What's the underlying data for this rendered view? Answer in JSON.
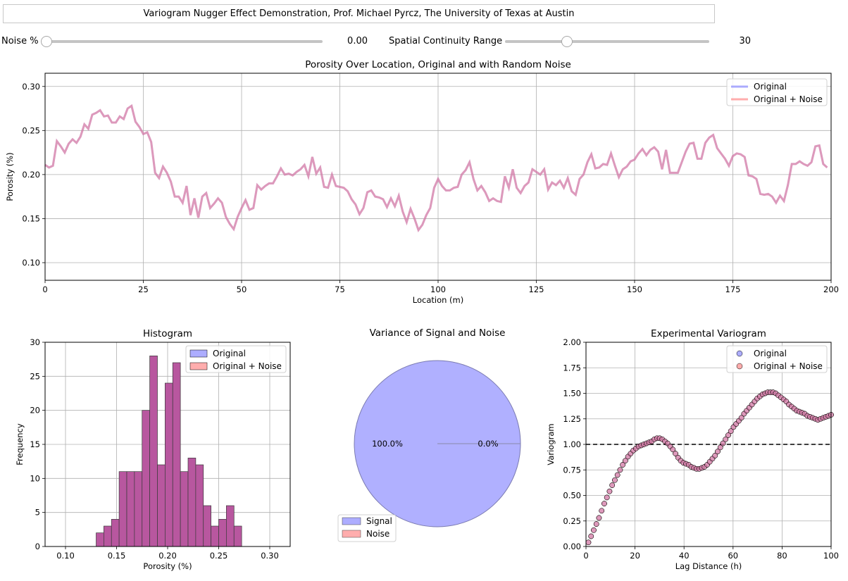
{
  "header": {
    "title": "Variogram Nugger Effect Demonstration, Prof. Michael Pyrcz, The University of Texas at Austin"
  },
  "controls": {
    "noise": {
      "label": "Noise %",
      "value_text": "0.00",
      "value": 0.0,
      "min": 0,
      "max": 100
    },
    "range": {
      "label": "Spatial Continuity Range",
      "value_text": "30",
      "value": 30,
      "min": 0,
      "max": 100
    }
  },
  "colors": {
    "original": "#7777ff",
    "noise": "#ff7777",
    "combined": "#b868a8",
    "hist_fill": "#b8579f",
    "signal_pie": "#b0b0ff"
  },
  "chart_data": [
    {
      "id": "line",
      "type": "line",
      "title": "Porosity Over Location, Original and with Random Noise",
      "xlabel": "Location (m)",
      "ylabel": "Porosity (%)",
      "xlim": [
        0,
        200
      ],
      "ylim": [
        0.08,
        0.315
      ],
      "xticks": [
        0,
        25,
        50,
        75,
        100,
        125,
        150,
        175,
        200
      ],
      "yticks": [
        0.1,
        0.15,
        0.2,
        0.25,
        0.3
      ],
      "legend": {
        "placement": "top-right",
        "entries": [
          "Original",
          "Original + Noise"
        ]
      },
      "series": [
        {
          "name": "Original",
          "values": [
            0.211,
            0.208,
            0.21,
            0.238,
            0.232,
            0.225,
            0.235,
            0.24,
            0.236,
            0.243,
            0.257,
            0.252,
            0.268,
            0.27,
            0.273,
            0.266,
            0.267,
            0.259,
            0.259,
            0.266,
            0.263,
            0.275,
            0.278,
            0.26,
            0.254,
            0.246,
            0.248,
            0.237,
            0.202,
            0.196,
            0.209,
            0.202,
            0.192,
            0.175,
            0.175,
            0.168,
            0.187,
            0.154,
            0.173,
            0.151,
            0.175,
            0.179,
            0.162,
            0.167,
            0.173,
            0.168,
            0.152,
            0.144,
            0.138,
            0.152,
            0.162,
            0.171,
            0.16,
            0.162,
            0.188,
            0.183,
            0.187,
            0.19,
            0.19,
            0.198,
            0.207,
            0.2,
            0.201,
            0.199,
            0.203,
            0.206,
            0.211,
            0.198,
            0.22,
            0.201,
            0.208,
            0.186,
            0.185,
            0.2,
            0.187,
            0.186,
            0.185,
            0.181,
            0.172,
            0.166,
            0.155,
            0.162,
            0.18,
            0.182,
            0.175,
            0.174,
            0.172,
            0.163,
            0.173,
            0.164,
            0.176,
            0.158,
            0.146,
            0.161,
            0.15,
            0.137,
            0.143,
            0.154,
            0.162,
            0.185,
            0.195,
            0.187,
            0.182,
            0.182,
            0.185,
            0.186,
            0.2,
            0.205,
            0.214,
            0.195,
            0.182,
            0.187,
            0.18,
            0.17,
            0.173,
            0.17,
            0.169,
            0.198,
            0.185,
            0.206,
            0.185,
            0.179,
            0.187,
            0.191,
            0.206,
            0.203,
            0.2,
            0.206,
            0.183,
            0.191,
            0.188,
            0.193,
            0.185,
            0.196,
            0.181,
            0.177,
            0.195,
            0.2,
            0.214,
            0.223,
            0.207,
            0.208,
            0.212,
            0.211,
            0.224,
            0.21,
            0.197,
            0.206,
            0.209,
            0.215,
            0.217,
            0.224,
            0.229,
            0.222,
            0.228,
            0.231,
            0.226,
            0.206,
            0.228,
            0.202,
            0.202,
            0.202,
            0.214,
            0.226,
            0.235,
            0.236,
            0.218,
            0.218,
            0.236,
            0.242,
            0.245,
            0.23,
            0.224,
            0.218,
            0.21,
            0.221,
            0.224,
            0.223,
            0.22,
            0.199,
            0.198,
            0.195,
            0.178,
            0.177,
            0.178,
            0.175,
            0.168,
            0.176,
            0.17,
            0.188,
            0.212,
            0.212,
            0.215,
            0.212,
            0.21,
            0.214,
            0.232,
            0.233,
            0.212,
            0.208
          ]
        },
        {
          "name": "Original + Noise",
          "values": "identical to Original (noise = 0.00)"
        }
      ]
    },
    {
      "id": "hist",
      "type": "bar",
      "title": "Histogram",
      "xlabel": "Porosity (%)",
      "ylabel": "Frequency",
      "xlim": [
        0.08,
        0.32
      ],
      "ylim": [
        0,
        30
      ],
      "xticks": [
        0.1,
        0.15,
        0.2,
        0.25,
        0.3
      ],
      "yticks": [
        0,
        5,
        10,
        15,
        20,
        25,
        30
      ],
      "legend": {
        "placement": "top-right",
        "entries": [
          "Original",
          "Original + Noise"
        ]
      },
      "bin_edges": [
        0.13,
        0.1375,
        0.145,
        0.1525,
        0.16,
        0.1675,
        0.175,
        0.1825,
        0.19,
        0.1975,
        0.205,
        0.2125,
        0.22,
        0.2275,
        0.235,
        0.2425,
        0.25,
        0.2575,
        0.265,
        0.2725,
        0.28
      ],
      "series": [
        {
          "name": "Original",
          "values": [
            2,
            3,
            4,
            11,
            11,
            11,
            20,
            28,
            12,
            24,
            27,
            11,
            13,
            12,
            6,
            3,
            4,
            6,
            3,
            0
          ]
        },
        {
          "name": "Original + Noise",
          "values": [
            2,
            3,
            4,
            11,
            11,
            11,
            20,
            28,
            12,
            24,
            27,
            11,
            13,
            12,
            6,
            3,
            4,
            6,
            3,
            0
          ]
        }
      ]
    },
    {
      "id": "pie",
      "type": "pie",
      "title": "Variance of Signal and Noise",
      "legend": {
        "placement": "bottom-left",
        "entries": [
          "Signal",
          "Noise"
        ]
      },
      "slices": [
        {
          "label": "Signal",
          "value": 100.0,
          "text": "100.0%"
        },
        {
          "label": "Noise",
          "value": 0.0,
          "text": "0.0%"
        }
      ]
    },
    {
      "id": "vario",
      "type": "scatter",
      "title": "Experimental Variogram",
      "xlabel": "Lag Distance (h)",
      "ylabel": "Variogram",
      "xlim": [
        0,
        100
      ],
      "ylim": [
        0,
        2.0
      ],
      "xticks": [
        0,
        20,
        40,
        60,
        80,
        100
      ],
      "yticks": [
        0.0,
        0.25,
        0.5,
        0.75,
        1.0,
        1.25,
        1.5,
        1.75,
        2.0
      ],
      "sill": 1.0,
      "legend": {
        "placement": "top-right",
        "entries": [
          "Original",
          "Original + Noise"
        ]
      },
      "series": [
        {
          "name": "Original",
          "values": [
            0.04,
            0.1,
            0.16,
            0.22,
            0.28,
            0.35,
            0.42,
            0.48,
            0.54,
            0.6,
            0.65,
            0.7,
            0.75,
            0.8,
            0.84,
            0.88,
            0.91,
            0.94,
            0.96,
            0.98,
            0.99,
            1.0,
            1.01,
            1.02,
            1.03,
            1.05,
            1.06,
            1.06,
            1.05,
            1.03,
            1.01,
            0.98,
            0.95,
            0.91,
            0.87,
            0.84,
            0.82,
            0.81,
            0.8,
            0.78,
            0.77,
            0.76,
            0.76,
            0.77,
            0.78,
            0.8,
            0.83,
            0.86,
            0.89,
            0.93,
            0.97,
            1.01,
            1.05,
            1.09,
            1.13,
            1.17,
            1.2,
            1.23,
            1.26,
            1.3,
            1.33,
            1.36,
            1.39,
            1.42,
            1.45,
            1.47,
            1.49,
            1.5,
            1.51,
            1.51,
            1.51,
            1.5,
            1.48,
            1.46,
            1.44,
            1.42,
            1.39,
            1.37,
            1.35,
            1.33,
            1.32,
            1.31,
            1.3,
            1.28,
            1.27,
            1.26,
            1.25,
            1.24,
            1.25,
            1.26,
            1.27,
            1.28,
            1.29
          ]
        },
        {
          "name": "Original + Noise",
          "values": "identical to Original (noise = 0.00)"
        }
      ]
    }
  ]
}
